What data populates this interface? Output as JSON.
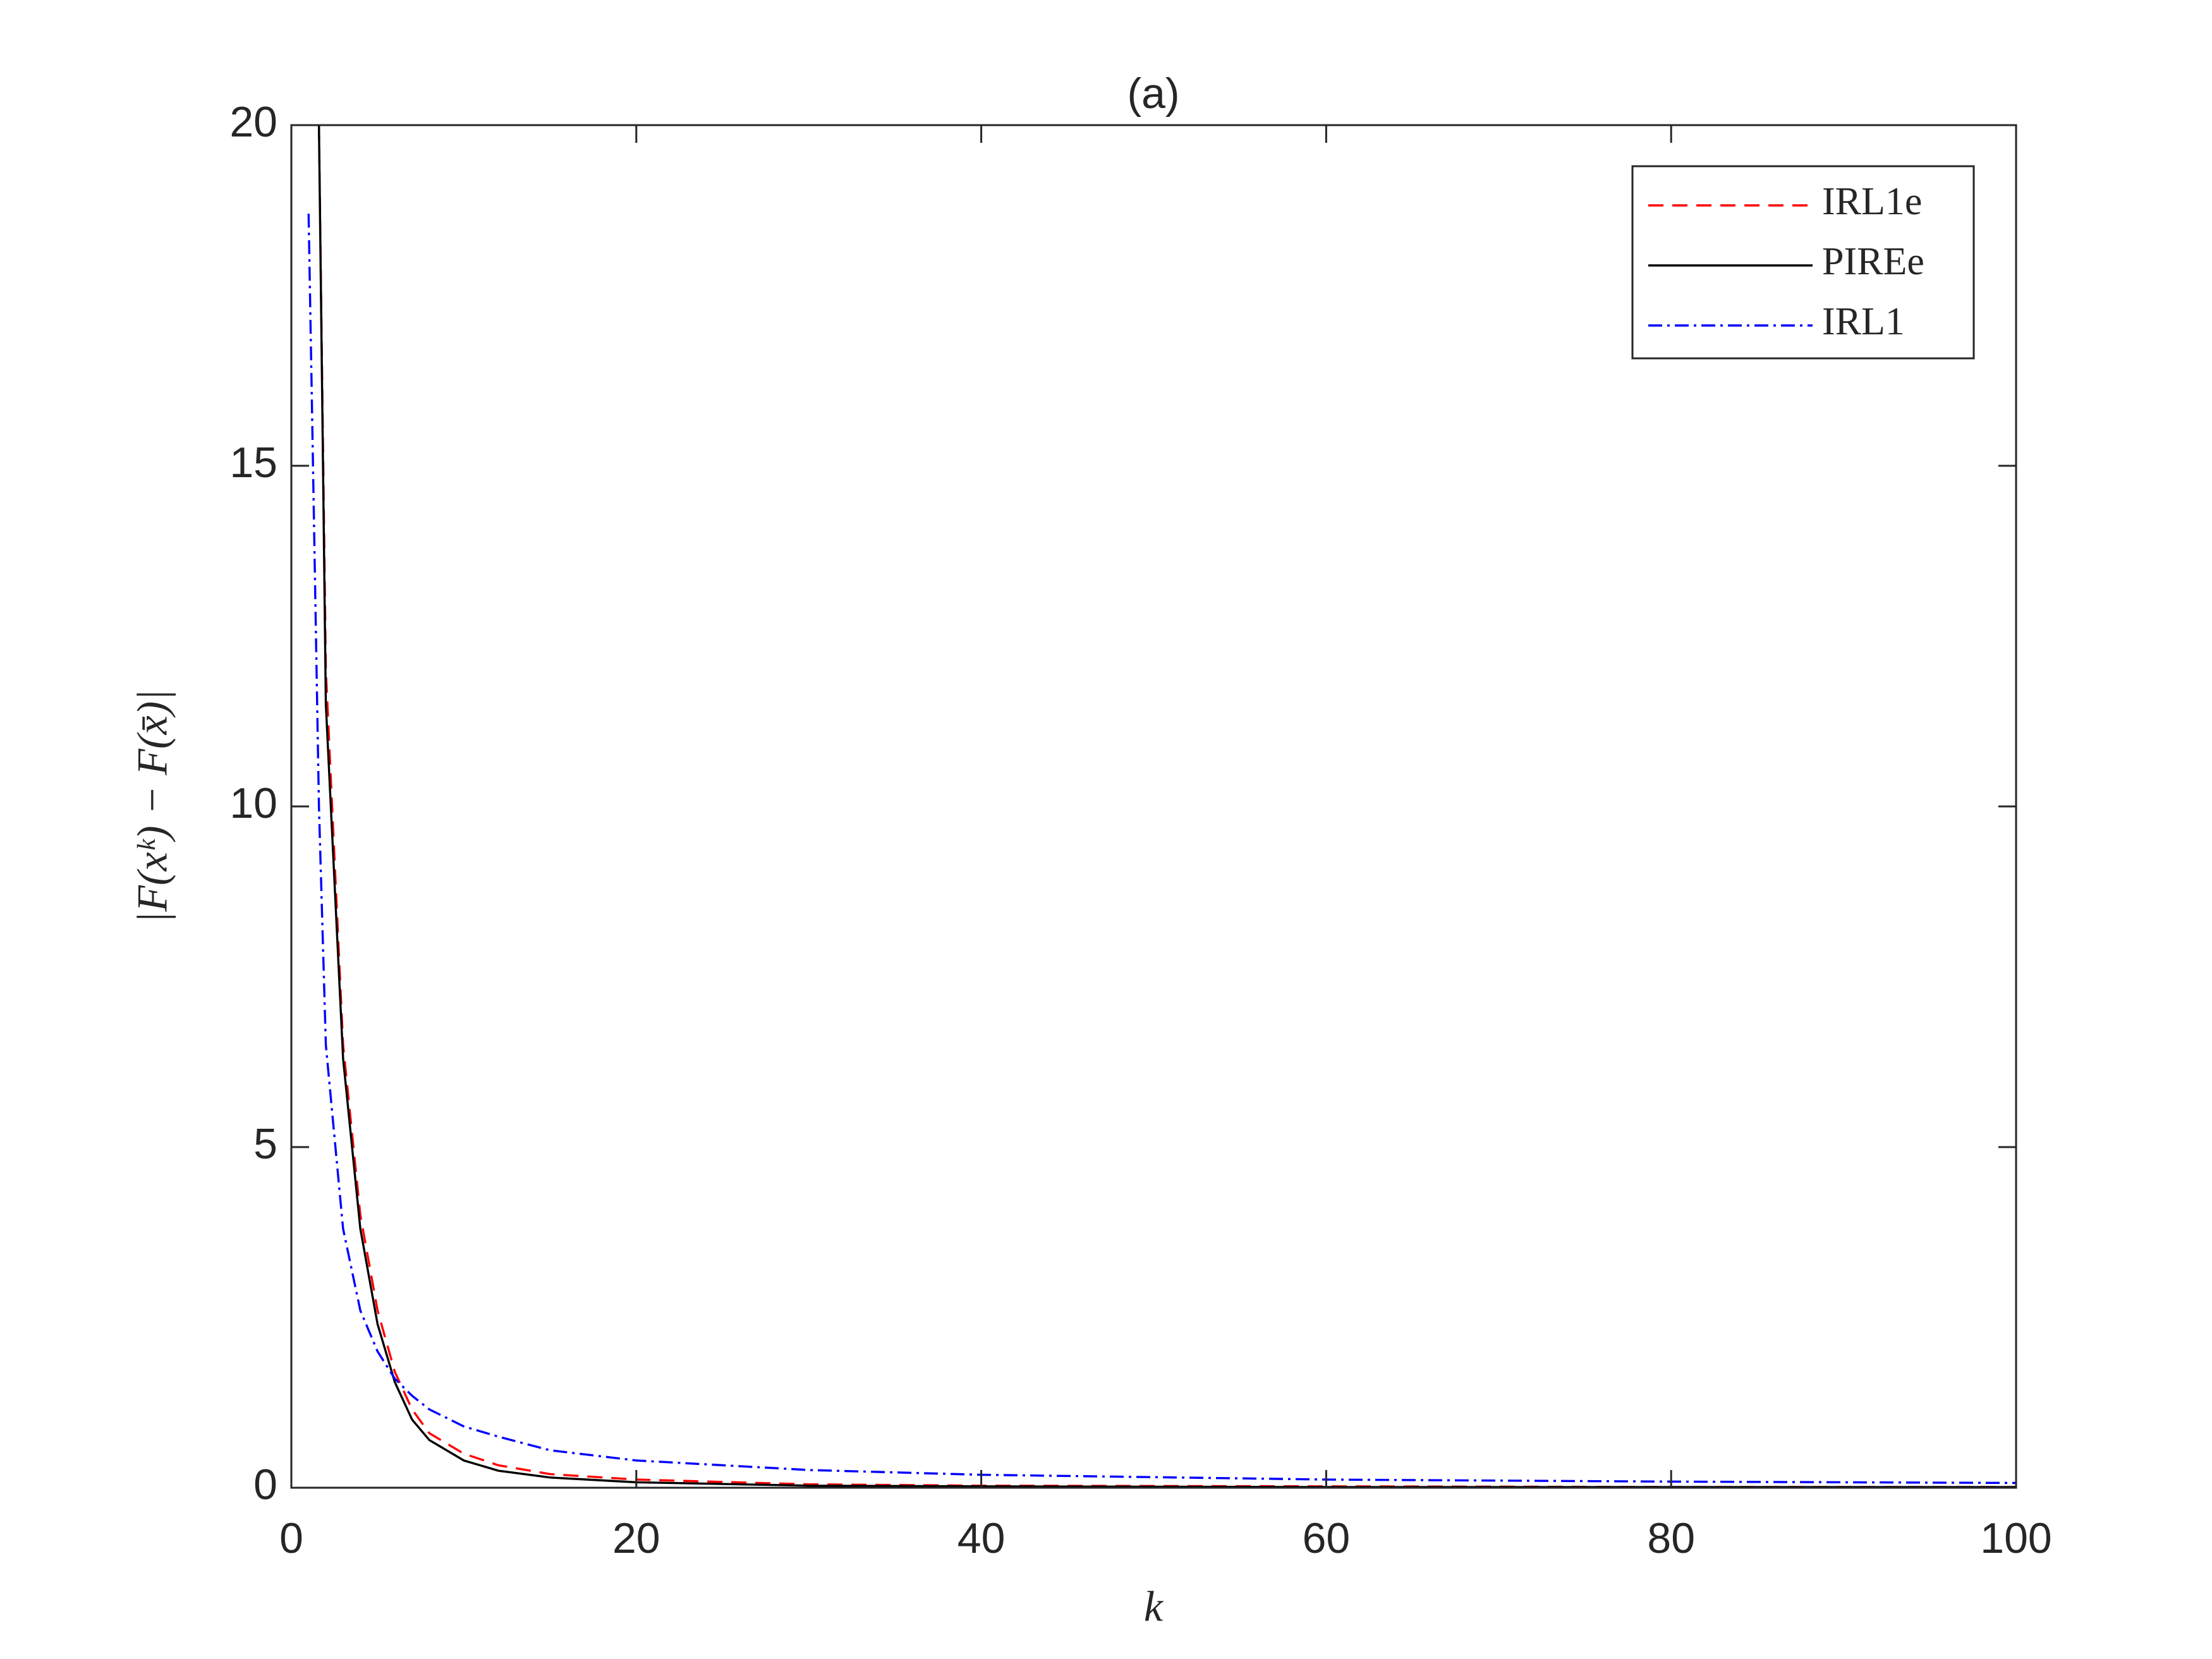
{
  "chart_data": {
    "type": "line",
    "title": "(a)",
    "x_label": "k",
    "y_label": "|F(xᵏ) − F(x̄)|",
    "x": [
      1,
      1.6,
      2,
      3,
      4,
      5,
      6,
      7,
      8,
      10,
      12,
      15,
      20,
      30,
      40,
      60,
      80,
      100
    ],
    "series": [
      {
        "name": "IRL1e",
        "color": "#ff0000",
        "dash": "dashed",
        "values": [
          null,
          20,
          12,
          6.5,
          4.0,
          2.6,
          1.7,
          1.15,
          0.8,
          0.5,
          0.33,
          0.2,
          0.12,
          0.05,
          0.03,
          0.02,
          0.01,
          0.01
        ]
      },
      {
        "name": "PIREe",
        "color": "#000000",
        "dash": "solid",
        "values": [
          null,
          20,
          11.5,
          6.3,
          3.8,
          2.4,
          1.55,
          1.0,
          0.7,
          0.4,
          0.25,
          0.15,
          0.08,
          0.03,
          0.02,
          0.01,
          0.01,
          0.01
        ]
      },
      {
        "name": "IRL1",
        "color": "#0000ff",
        "dash": "dashdot",
        "values": [
          18.7,
          10,
          6.5,
          3.8,
          2.6,
          2.0,
          1.6,
          1.35,
          1.15,
          0.9,
          0.75,
          0.55,
          0.4,
          0.26,
          0.19,
          0.12,
          0.09,
          0.07
        ]
      }
    ],
    "xlim": [
      0,
      100
    ],
    "xticks": [
      0,
      20,
      40,
      60,
      80,
      100
    ],
    "ylim": [
      0,
      20
    ],
    "yticks": [
      0,
      5,
      10,
      15,
      20
    ],
    "legend": "upper right",
    "grid": false
  }
}
